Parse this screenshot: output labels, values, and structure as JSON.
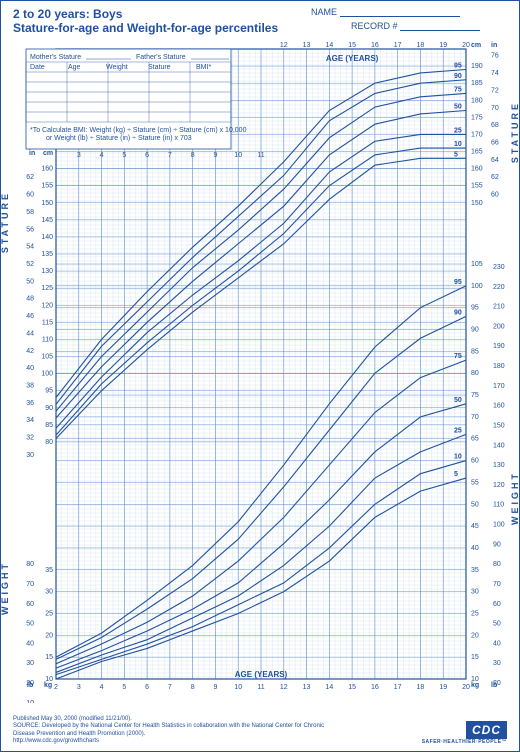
{
  "header": {
    "title_line1": "2 to 20 years: Boys",
    "title_line2": "Stature-for-age and Weight-for-age percentiles",
    "name_label": "NAME",
    "record_label": "RECORD #"
  },
  "table": {
    "mother_label": "Mother's Stature",
    "father_label": "Father's Stature",
    "columns": [
      "Date",
      "Age",
      "Weight",
      "Stature",
      "BMI*"
    ],
    "bmi_note": "*To Calculate BMI: Weight (kg) ÷ Stature (cm) ÷ Stature (cm) x 10,000 or Weight (lb) ÷ Stature (in) ÷ Stature (in) x 703"
  },
  "chart": {
    "type": "line",
    "background_color": "#ffffff",
    "grid_minor_color": "#c8d8f0",
    "grid_major_color": "#6090d0",
    "line_color": "#2050a0",
    "accent_color": "#2050a0",
    "x_axis": {
      "label": "AGE (YEARS)",
      "min": 2,
      "max": 20,
      "ticks": [
        2,
        3,
        4,
        5,
        6,
        7,
        8,
        9,
        10,
        11,
        12,
        13,
        14,
        15,
        16,
        17,
        18,
        19,
        20
      ]
    },
    "stature_left": {
      "unit_in": "in",
      "unit_cm": "cm",
      "cm_min": 75,
      "cm_max": 160,
      "in_ticks": [
        30,
        32,
        34,
        36,
        38,
        40,
        42,
        44,
        46,
        48,
        50,
        52,
        54,
        56,
        58,
        60,
        62
      ],
      "cm_ticks": [
        80,
        85,
        90,
        95,
        100,
        105,
        110,
        115,
        120,
        125,
        130,
        135,
        140,
        145,
        150,
        155,
        160
      ]
    },
    "stature_right": {
      "cm_min": 150,
      "cm_max": 195,
      "in_ticks": [
        60,
        62,
        64,
        66,
        68,
        70,
        72,
        74,
        76
      ],
      "cm_ticks": [
        150,
        155,
        160,
        165,
        170,
        175,
        180,
        185,
        190
      ]
    },
    "weight_left": {
      "unit_lb": "lb",
      "unit_kg": "kg",
      "kg_min": 10,
      "kg_max": 80,
      "kg_ticks": [
        10,
        15,
        20,
        25,
        30,
        35
      ],
      "lb_ticks": [
        10,
        20,
        30,
        40,
        50,
        60,
        70,
        80
      ]
    },
    "weight_right": {
      "kg_min": 10,
      "kg_max": 105,
      "kg_ticks": [
        10,
        15,
        20,
        25,
        30,
        35,
        40,
        45,
        50,
        55,
        60,
        65,
        70,
        75,
        80,
        85,
        90,
        95,
        100,
        105
      ],
      "lb_ticks": [
        20,
        30,
        40,
        50,
        60,
        70,
        80,
        90,
        100,
        110,
        120,
        130,
        140,
        150,
        160,
        170,
        180,
        190,
        200,
        210,
        220,
        230
      ]
    },
    "vertical_labels": {
      "stature": "STATURE",
      "weight": "WEIGHT"
    },
    "percentile_labels": [
      "5",
      "10",
      "25",
      "50",
      "75",
      "90",
      "95"
    ],
    "stature_curves": {
      "5": [
        [
          2,
          81
        ],
        [
          4,
          95
        ],
        [
          6,
          107
        ],
        [
          8,
          118
        ],
        [
          10,
          128
        ],
        [
          12,
          138
        ],
        [
          14,
          151
        ],
        [
          16,
          161
        ],
        [
          18,
          163
        ],
        [
          20,
          163
        ]
      ],
      "10": [
        [
          2,
          82
        ],
        [
          4,
          97
        ],
        [
          6,
          109
        ],
        [
          8,
          120
        ],
        [
          10,
          130
        ],
        [
          12,
          141
        ],
        [
          14,
          155
        ],
        [
          16,
          164
        ],
        [
          18,
          166
        ],
        [
          20,
          166
        ]
      ],
      "25": [
        [
          2,
          84
        ],
        [
          4,
          99
        ],
        [
          6,
          112
        ],
        [
          8,
          123
        ],
        [
          10,
          133
        ],
        [
          12,
          144
        ],
        [
          14,
          159
        ],
        [
          16,
          168
        ],
        [
          18,
          170
        ],
        [
          20,
          170
        ]
      ],
      "50": [
        [
          2,
          87
        ],
        [
          4,
          102
        ],
        [
          6,
          115
        ],
        [
          8,
          127
        ],
        [
          10,
          138
        ],
        [
          12,
          149
        ],
        [
          14,
          164
        ],
        [
          16,
          173
        ],
        [
          18,
          176
        ],
        [
          20,
          177
        ]
      ],
      "75": [
        [
          2,
          89
        ],
        [
          4,
          105
        ],
        [
          6,
          118
        ],
        [
          8,
          131
        ],
        [
          10,
          142
        ],
        [
          12,
          154
        ],
        [
          14,
          169
        ],
        [
          16,
          178
        ],
        [
          18,
          181
        ],
        [
          20,
          182
        ]
      ],
      "90": [
        [
          2,
          91
        ],
        [
          4,
          108
        ],
        [
          6,
          121
        ],
        [
          8,
          134
        ],
        [
          10,
          146
        ],
        [
          12,
          158
        ],
        [
          14,
          174
        ],
        [
          16,
          182
        ],
        [
          18,
          185
        ],
        [
          20,
          186
        ]
      ],
      "95": [
        [
          2,
          93
        ],
        [
          4,
          110
        ],
        [
          6,
          124
        ],
        [
          8,
          137
        ],
        [
          10,
          149
        ],
        [
          12,
          162
        ],
        [
          14,
          177
        ],
        [
          16,
          185
        ],
        [
          18,
          188
        ],
        [
          20,
          189
        ]
      ]
    },
    "weight_curves": {
      "5": [
        [
          2,
          10
        ],
        [
          4,
          14
        ],
        [
          6,
          17
        ],
        [
          8,
          21
        ],
        [
          10,
          25
        ],
        [
          12,
          30
        ],
        [
          14,
          37
        ],
        [
          16,
          47
        ],
        [
          18,
          53
        ],
        [
          20,
          56
        ]
      ],
      "10": [
        [
          2,
          11
        ],
        [
          4,
          14.5
        ],
        [
          6,
          18
        ],
        [
          8,
          22
        ],
        [
          10,
          27
        ],
        [
          12,
          32
        ],
        [
          14,
          40
        ],
        [
          16,
          50
        ],
        [
          18,
          57
        ],
        [
          20,
          60
        ]
      ],
      "25": [
        [
          2,
          11.5
        ],
        [
          4,
          15.5
        ],
        [
          6,
          19
        ],
        [
          8,
          24
        ],
        [
          10,
          29
        ],
        [
          12,
          36
        ],
        [
          14,
          45
        ],
        [
          16,
          56
        ],
        [
          18,
          62
        ],
        [
          20,
          66
        ]
      ],
      "50": [
        [
          2,
          12.5
        ],
        [
          4,
          16.5
        ],
        [
          6,
          21
        ],
        [
          8,
          26
        ],
        [
          10,
          32
        ],
        [
          12,
          41
        ],
        [
          14,
          51
        ],
        [
          16,
          62
        ],
        [
          18,
          70
        ],
        [
          20,
          73
        ]
      ],
      "75": [
        [
          2,
          13.5
        ],
        [
          4,
          18
        ],
        [
          6,
          23
        ],
        [
          8,
          29
        ],
        [
          10,
          37
        ],
        [
          12,
          47
        ],
        [
          14,
          59
        ],
        [
          16,
          71
        ],
        [
          18,
          79
        ],
        [
          20,
          83
        ]
      ],
      "90": [
        [
          2,
          14.5
        ],
        [
          4,
          19.5
        ],
        [
          6,
          26
        ],
        [
          8,
          33
        ],
        [
          10,
          42
        ],
        [
          12,
          54
        ],
        [
          14,
          67
        ],
        [
          16,
          80
        ],
        [
          18,
          88
        ],
        [
          20,
          93
        ]
      ],
      "95": [
        [
          2,
          15
        ],
        [
          4,
          20.5
        ],
        [
          6,
          28
        ],
        [
          8,
          36
        ],
        [
          10,
          46
        ],
        [
          12,
          59
        ],
        [
          14,
          73
        ],
        [
          16,
          86
        ],
        [
          18,
          95
        ],
        [
          20,
          100
        ]
      ]
    }
  },
  "footer": {
    "published": "Published May 30, 2000 (modified 11/21/00).",
    "source": "SOURCE: Developed by the National Center for Health Statistics in collaboration with the National Center for Chronic Disease Prevention and Health Promotion (2000).",
    "url": "http://www.cdc.gov/growthcharts",
    "logo_text": "CDC",
    "tagline": "SAFER·HEALTHIER·PEOPLE™"
  }
}
